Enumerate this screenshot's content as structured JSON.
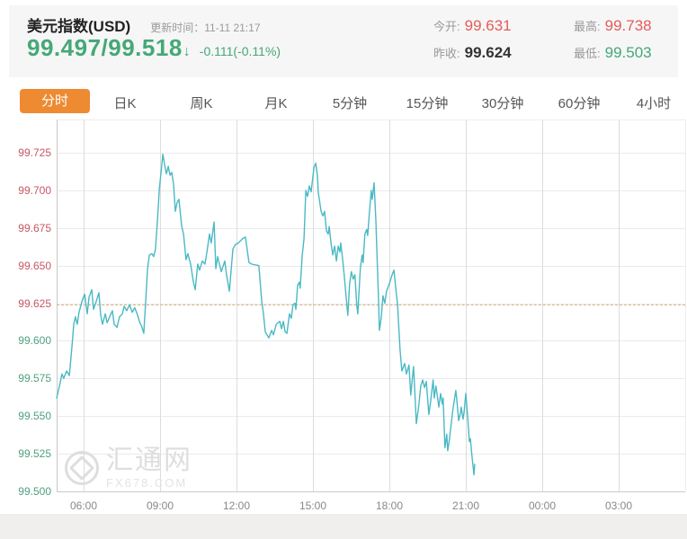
{
  "header": {
    "title": "美元指数(USD)",
    "update_time_text": "更新时间：11-11 21:17",
    "quote": {
      "bid": "99.497",
      "separator": " / ",
      "ask": "99.518",
      "arrow": "↓",
      "change": "-0.111(-0.11%)"
    },
    "stats": {
      "open": {
        "label": "今开:",
        "value": "99.631"
      },
      "high": {
        "label": "最高:",
        "value": "99.738"
      },
      "prev": {
        "label": "昨收:",
        "value": "99.624"
      },
      "low": {
        "label": "最低:",
        "value": "99.503"
      }
    }
  },
  "tabs": {
    "active_index": 0,
    "items": [
      {
        "label": "分时"
      },
      {
        "label": "日K"
      },
      {
        "label": "周K"
      },
      {
        "label": "月K"
      },
      {
        "label": "5分钟"
      },
      {
        "label": "15分钟"
      },
      {
        "label": "30分钟"
      },
      {
        "label": "60分钟"
      },
      {
        "label": "4小时"
      }
    ]
  },
  "watermark": {
    "name": "汇通网",
    "site": "FX678.COM"
  },
  "chart_data": {
    "type": "line",
    "title": "美元指数 分时走势",
    "prev_close": 99.624,
    "open": 99.631,
    "high": 99.738,
    "low": 99.503,
    "last": 99.518,
    "ylim": [
      99.5,
      99.725
    ],
    "y_ticks": [
      99.725,
      99.7,
      99.675,
      99.65,
      99.625,
      99.6,
      99.575,
      99.55,
      99.525,
      99.5
    ],
    "x_ticks": [
      {
        "t": 6,
        "label": "06:00"
      },
      {
        "t": 9,
        "label": "09:00"
      },
      {
        "t": 12,
        "label": "12:00"
      },
      {
        "t": 15,
        "label": "15:00"
      },
      {
        "t": 18,
        "label": "18:00"
      },
      {
        "t": 21,
        "label": "21:00"
      },
      {
        "t": 24,
        "label": "00:00"
      },
      {
        "t": 27,
        "label": "03:00"
      }
    ],
    "colors": {
      "line": "#4ab9c4",
      "tick_up": "#c75562",
      "tick_down": "#4ea07e",
      "prev_close_line": "#d8b586",
      "accent_orange": "#ee8a31",
      "quote_green": "#45a877",
      "value_red": "#e85a5a"
    },
    "points": [
      [
        4.94,
        99.562
      ],
      [
        5.05,
        99.57
      ],
      [
        5.15,
        99.578
      ],
      [
        5.22,
        99.575
      ],
      [
        5.33,
        99.58
      ],
      [
        5.44,
        99.577
      ],
      [
        5.54,
        99.596
      ],
      [
        5.61,
        99.611
      ],
      [
        5.68,
        99.616
      ],
      [
        5.75,
        99.611
      ],
      [
        5.82,
        99.619
      ],
      [
        5.93,
        99.626
      ],
      [
        6.04,
        99.631
      ],
      [
        6.14,
        99.618
      ],
      [
        6.21,
        99.629
      ],
      [
        6.32,
        99.634
      ],
      [
        6.39,
        99.621
      ],
      [
        6.49,
        99.626
      ],
      [
        6.6,
        99.632
      ],
      [
        6.67,
        99.617
      ],
      [
        6.74,
        99.611
      ],
      [
        6.85,
        99.618
      ],
      [
        6.92,
        99.612
      ],
      [
        7.02,
        99.616
      ],
      [
        7.13,
        99.62
      ],
      [
        7.2,
        99.611
      ],
      [
        7.31,
        99.609
      ],
      [
        7.41,
        99.616
      ],
      [
        7.52,
        99.618
      ],
      [
        7.59,
        99.623
      ],
      [
        7.69,
        99.62
      ],
      [
        7.8,
        99.624
      ],
      [
        7.91,
        99.619
      ],
      [
        8.01,
        99.622
      ],
      [
        8.12,
        99.617
      ],
      [
        8.19,
        99.613
      ],
      [
        8.29,
        99.609
      ],
      [
        8.36,
        99.605
      ],
      [
        8.44,
        99.627
      ],
      [
        8.51,
        99.648
      ],
      [
        8.58,
        99.657
      ],
      [
        8.68,
        99.658
      ],
      [
        8.75,
        99.656
      ],
      [
        8.82,
        99.661
      ],
      [
        8.89,
        99.678
      ],
      [
        8.97,
        99.701
      ],
      [
        9.04,
        99.712
      ],
      [
        9.11,
        99.724
      ],
      [
        9.18,
        99.717
      ],
      [
        9.25,
        99.711
      ],
      [
        9.32,
        99.716
      ],
      [
        9.39,
        99.71
      ],
      [
        9.46,
        99.712
      ],
      [
        9.53,
        99.704
      ],
      [
        9.6,
        99.686
      ],
      [
        9.67,
        99.692
      ],
      [
        9.74,
        99.694
      ],
      [
        9.85,
        99.676
      ],
      [
        9.92,
        99.671
      ],
      [
        10.02,
        99.654
      ],
      [
        10.09,
        99.658
      ],
      [
        10.2,
        99.651
      ],
      [
        10.31,
        99.639
      ],
      [
        10.38,
        99.634
      ],
      [
        10.48,
        99.651
      ],
      [
        10.55,
        99.647
      ],
      [
        10.66,
        99.653
      ],
      [
        10.76,
        99.651
      ],
      [
        10.84,
        99.659
      ],
      [
        10.94,
        99.671
      ],
      [
        11.01,
        99.665
      ],
      [
        11.12,
        99.679
      ],
      [
        11.19,
        99.648
      ],
      [
        11.26,
        99.656
      ],
      [
        11.4,
        99.646
      ],
      [
        11.54,
        99.653
      ],
      [
        11.61,
        99.644
      ],
      [
        11.72,
        99.633
      ],
      [
        11.86,
        99.661
      ],
      [
        11.96,
        99.664
      ],
      [
        12.07,
        99.665
      ],
      [
        12.25,
        99.668
      ],
      [
        12.35,
        99.669
      ],
      [
        12.49,
        99.652
      ],
      [
        12.6,
        99.651
      ],
      [
        12.88,
        99.65
      ],
      [
        12.99,
        99.626
      ],
      [
        13.06,
        99.618
      ],
      [
        13.13,
        99.606
      ],
      [
        13.27,
        99.602
      ],
      [
        13.38,
        99.607
      ],
      [
        13.45,
        99.604
      ],
      [
        13.56,
        99.611
      ],
      [
        13.63,
        99.612
      ],
      [
        13.7,
        99.613
      ],
      [
        13.77,
        99.608
      ],
      [
        13.84,
        99.613
      ],
      [
        13.91,
        99.606
      ],
      [
        13.98,
        99.605
      ],
      [
        14.08,
        99.618
      ],
      [
        14.15,
        99.615
      ],
      [
        14.22,
        99.624
      ],
      [
        14.29,
        99.625
      ],
      [
        14.33,
        99.621
      ],
      [
        14.4,
        99.637
      ],
      [
        14.47,
        99.639
      ],
      [
        14.5,
        99.635
      ],
      [
        14.58,
        99.657
      ],
      [
        14.65,
        99.668
      ],
      [
        14.72,
        99.7
      ],
      [
        14.79,
        99.696
      ],
      [
        14.86,
        99.703
      ],
      [
        14.93,
        99.699
      ],
      [
        15.04,
        99.715
      ],
      [
        15.11,
        99.718
      ],
      [
        15.18,
        99.709
      ],
      [
        15.21,
        99.699
      ],
      [
        15.32,
        99.686
      ],
      [
        15.39,
        99.683
      ],
      [
        15.46,
        99.686
      ],
      [
        15.53,
        99.673
      ],
      [
        15.6,
        99.671
      ],
      [
        15.64,
        99.676
      ],
      [
        15.71,
        99.665
      ],
      [
        15.78,
        99.657
      ],
      [
        15.85,
        99.663
      ],
      [
        15.92,
        99.653
      ],
      [
        15.99,
        99.663
      ],
      [
        16.06,
        99.659
      ],
      [
        16.09,
        99.665
      ],
      [
        16.16,
        99.655
      ],
      [
        16.23,
        99.643
      ],
      [
        16.3,
        99.63
      ],
      [
        16.37,
        99.617
      ],
      [
        16.44,
        99.638
      ],
      [
        16.51,
        99.646
      ],
      [
        16.58,
        99.641
      ],
      [
        16.65,
        99.644
      ],
      [
        16.72,
        99.624
      ],
      [
        16.76,
        99.618
      ],
      [
        16.86,
        99.648
      ],
      [
        16.93,
        99.657
      ],
      [
        16.97,
        99.652
      ],
      [
        17.04,
        99.671
      ],
      [
        17.11,
        99.674
      ],
      [
        17.15,
        99.67
      ],
      [
        17.22,
        99.686
      ],
      [
        17.29,
        99.7
      ],
      [
        17.33,
        99.694
      ],
      [
        17.4,
        99.705
      ],
      [
        17.47,
        99.68
      ],
      [
        17.51,
        99.66
      ],
      [
        17.58,
        99.625
      ],
      [
        17.61,
        99.607
      ],
      [
        17.68,
        99.615
      ],
      [
        17.75,
        99.63
      ],
      [
        17.82,
        99.625
      ],
      [
        17.89,
        99.633
      ],
      [
        18.0,
        99.638
      ],
      [
        18.11,
        99.644
      ],
      [
        18.18,
        99.647
      ],
      [
        18.25,
        99.635
      ],
      [
        18.32,
        99.624
      ],
      [
        18.42,
        99.594
      ],
      [
        18.49,
        99.58
      ],
      [
        18.6,
        99.585
      ],
      [
        18.67,
        99.578
      ],
      [
        18.77,
        99.584
      ],
      [
        18.84,
        99.564
      ],
      [
        18.95,
        99.583
      ],
      [
        18.99,
        99.57
      ],
      [
        19.06,
        99.545
      ],
      [
        19.16,
        99.558
      ],
      [
        19.23,
        99.57
      ],
      [
        19.31,
        99.574
      ],
      [
        19.38,
        99.569
      ],
      [
        19.45,
        99.573
      ],
      [
        19.55,
        99.551
      ],
      [
        19.62,
        99.56
      ],
      [
        19.72,
        99.574
      ],
      [
        19.76,
        99.562
      ],
      [
        19.83,
        99.57
      ],
      [
        19.94,
        99.556
      ],
      [
        20.01,
        99.565
      ],
      [
        20.08,
        99.558
      ],
      [
        20.11,
        99.562
      ],
      [
        20.18,
        99.529
      ],
      [
        20.25,
        99.538
      ],
      [
        20.29,
        99.527
      ],
      [
        20.36,
        99.535
      ],
      [
        20.43,
        99.545
      ],
      [
        20.5,
        99.555
      ],
      [
        20.61,
        99.567
      ],
      [
        20.64,
        99.562
      ],
      [
        20.72,
        99.547
      ],
      [
        20.79,
        99.552
      ],
      [
        20.82,
        99.556
      ],
      [
        20.89,
        99.548
      ],
      [
        20.93,
        99.552
      ],
      [
        21.0,
        99.565
      ],
      [
        21.07,
        99.55
      ],
      [
        21.14,
        99.533
      ],
      [
        21.18,
        99.535
      ],
      [
        21.25,
        99.522
      ],
      [
        21.32,
        99.511
      ],
      [
        21.35,
        99.518
      ]
    ],
    "legend": null,
    "grid": true
  }
}
